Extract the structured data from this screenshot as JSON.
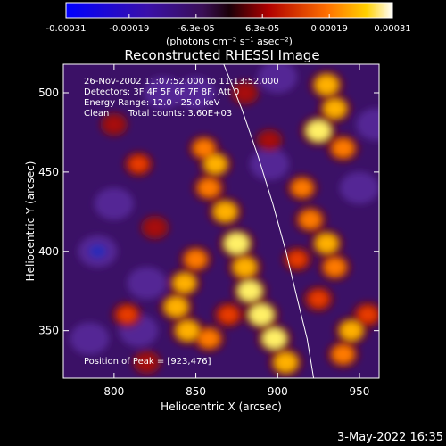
{
  "chart_data": {
    "type": "heatmap",
    "title": "Reconstructed RHESSI Image",
    "xlabel": "Heliocentric X (arcsec)",
    "ylabel": "Heliocentric Y (arcsec)",
    "xlim": [
      769,
      962
    ],
    "ylim": [
      320,
      518
    ],
    "x_ticks": [
      800,
      850,
      900,
      950
    ],
    "y_ticks": [
      350,
      400,
      450,
      500
    ],
    "colorbar": {
      "range": [
        -0.00031,
        0.00031
      ],
      "tick_values": [
        -0.00031,
        -0.00019,
        -6.3e-05,
        6.3e-05,
        0.00019,
        0.00031
      ],
      "tick_labels": [
        "-0.00031",
        "-0.00019",
        "-6.3e-05",
        "6.3e-05",
        "0.00019",
        "0.00031"
      ],
      "unit_label": "(photons cm⁻² s⁻¹ asec⁻²)"
    },
    "annotations": {
      "time": "26-Nov-2002 11:07:52.000 to 11:13:52.000",
      "detectors": "Detectors: 3F 4F 5F 6F 7F 8F, Att 0",
      "energy": "Energy Range: 12.0 - 25.0 keV",
      "clean": "Clean",
      "counts": "Total counts: 3.60E+03",
      "peak": "Position of Peak = [923,476]"
    },
    "peak_position": [
      923,
      476
    ],
    "limb_curve": [
      [
        867,
        518
      ],
      [
        878,
        490
      ],
      [
        888,
        460
      ],
      [
        897,
        430
      ],
      [
        905,
        400
      ],
      [
        912,
        370
      ],
      [
        918,
        345
      ],
      [
        922,
        320
      ]
    ],
    "features": [
      {
        "x": 858,
        "y": 440,
        "v": 0.8
      },
      {
        "x": 868,
        "y": 425,
        "v": 0.9
      },
      {
        "x": 875,
        "y": 405,
        "v": 1.0
      },
      {
        "x": 880,
        "y": 390,
        "v": 0.9
      },
      {
        "x": 883,
        "y": 375,
        "v": 0.95
      },
      {
        "x": 890,
        "y": 360,
        "v": 1.0
      },
      {
        "x": 898,
        "y": 345,
        "v": 0.95
      },
      {
        "x": 905,
        "y": 330,
        "v": 0.9
      },
      {
        "x": 862,
        "y": 455,
        "v": 0.85
      },
      {
        "x": 855,
        "y": 465,
        "v": 0.75
      },
      {
        "x": 850,
        "y": 395,
        "v": 0.8
      },
      {
        "x": 843,
        "y": 380,
        "v": 0.85
      },
      {
        "x": 838,
        "y": 365,
        "v": 0.9
      },
      {
        "x": 845,
        "y": 350,
        "v": 0.9
      },
      {
        "x": 858,
        "y": 345,
        "v": 0.8
      },
      {
        "x": 825,
        "y": 415,
        "v": 0.6
      },
      {
        "x": 815,
        "y": 455,
        "v": 0.65
      },
      {
        "x": 808,
        "y": 360,
        "v": 0.7
      },
      {
        "x": 820,
        "y": 330,
        "v": 0.6
      },
      {
        "x": 800,
        "y": 480,
        "v": 0.55
      },
      {
        "x": 930,
        "y": 505,
        "v": 0.9
      },
      {
        "x": 935,
        "y": 490,
        "v": 0.85
      },
      {
        "x": 925,
        "y": 476,
        "v": 1.0
      },
      {
        "x": 940,
        "y": 465,
        "v": 0.8
      },
      {
        "x": 915,
        "y": 440,
        "v": 0.75
      },
      {
        "x": 920,
        "y": 420,
        "v": 0.8
      },
      {
        "x": 930,
        "y": 405,
        "v": 0.85
      },
      {
        "x": 935,
        "y": 390,
        "v": 0.8
      },
      {
        "x": 925,
        "y": 370,
        "v": 0.7
      },
      {
        "x": 945,
        "y": 350,
        "v": 0.85
      },
      {
        "x": 940,
        "y": 335,
        "v": 0.8
      },
      {
        "x": 955,
        "y": 360,
        "v": 0.7
      },
      {
        "x": 880,
        "y": 500,
        "v": 0.6
      },
      {
        "x": 895,
        "y": 470,
        "v": 0.5
      },
      {
        "x": 870,
        "y": 360,
        "v": 0.7
      },
      {
        "x": 912,
        "y": 395,
        "v": 0.65
      }
    ]
  },
  "footer": {
    "date": "3-May-2022 16:35"
  }
}
